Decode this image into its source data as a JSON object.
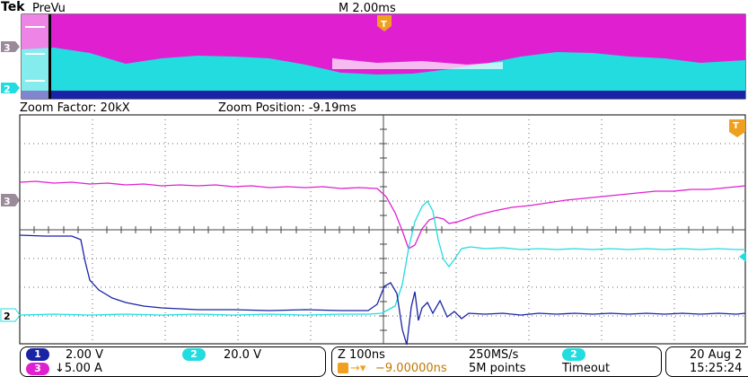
{
  "header": {
    "brand": "Tek",
    "mode": "PreVu",
    "timebase": "M 2.00ms",
    "trigger_marker": "T"
  },
  "zoom": {
    "factor_label": "Zoom Factor: 20kX",
    "position_label": "Zoom Position: -9.19ms"
  },
  "markers": {
    "ch3": "3",
    "ch2": "2",
    "trigger": "T"
  },
  "status": {
    "ch1_badge": "1",
    "ch1_scale": "2.00 V",
    "ch2_badge": "2",
    "ch2_scale": "20.0 V",
    "ch3_badge": "3",
    "ch3_scale": "↓5.00 A",
    "zoom_time": "Z 100ns",
    "trigger_delay": "−9.00000ns",
    "sample_rate": "250MS/s",
    "record_length": "5M points",
    "trig_badge": "2",
    "trig_mode": "Timeout",
    "date": "20 Aug 2",
    "time": "15:25:24"
  },
  "colors": {
    "ch1": "#1a22a6",
    "ch2": "#22dce0",
    "ch3": "#e020d0",
    "trigger": "#f0a020",
    "grid": "#555555"
  }
}
